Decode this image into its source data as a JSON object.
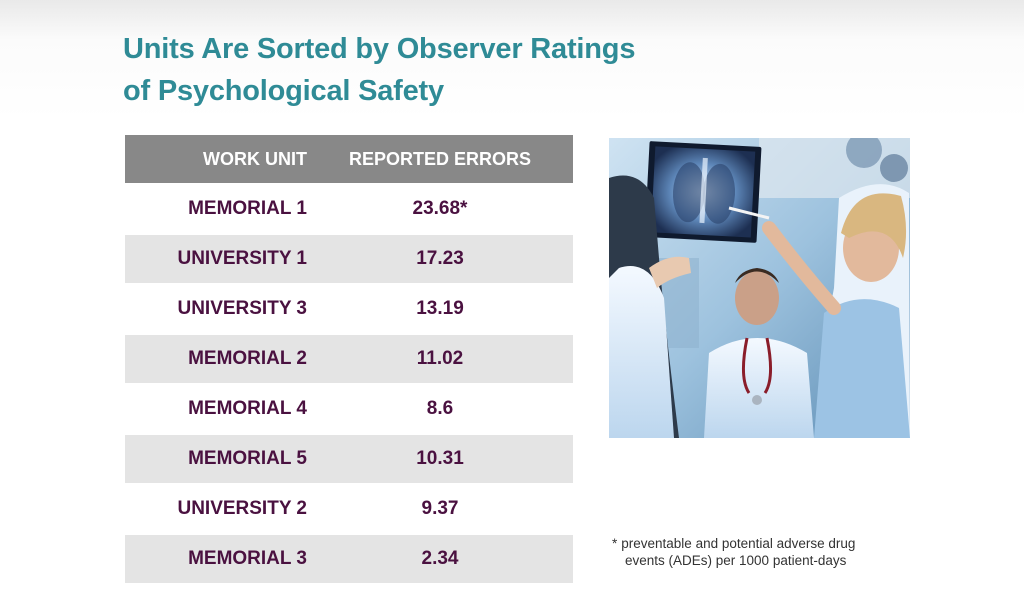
{
  "slide": {
    "title_line1": "Units Are Sorted by Observer Ratings",
    "title_line2": "of Psychological Safety"
  },
  "table": {
    "headers": [
      "WORK UNIT",
      "REPORTED ERRORS"
    ],
    "rows": [
      {
        "unit": "MEMORIAL 1",
        "errors": "23.68*"
      },
      {
        "unit": "UNIVERSITY 1",
        "errors": "17.23"
      },
      {
        "unit": "UNIVERSITY 3",
        "errors": "13.19"
      },
      {
        "unit": "MEMORIAL 2",
        "errors": "11.02"
      },
      {
        "unit": "MEMORIAL 4",
        "errors": "8.6"
      },
      {
        "unit": "MEMORIAL 5",
        "errors": "10.31"
      },
      {
        "unit": "UNIVERSITY 2",
        "errors": "9.37"
      },
      {
        "unit": "MEMORIAL 3",
        "errors": "2.34"
      }
    ]
  },
  "footnote": {
    "star": "*",
    "line1": "preventable and potential adverse drug",
    "line2": "events (ADEs) per 1000 patient-days"
  },
  "colors": {
    "title": "#2f8b96",
    "header_bg": "#888888",
    "row_text": "#4a1140",
    "row_alt_bg": "#e4e4e4"
  }
}
